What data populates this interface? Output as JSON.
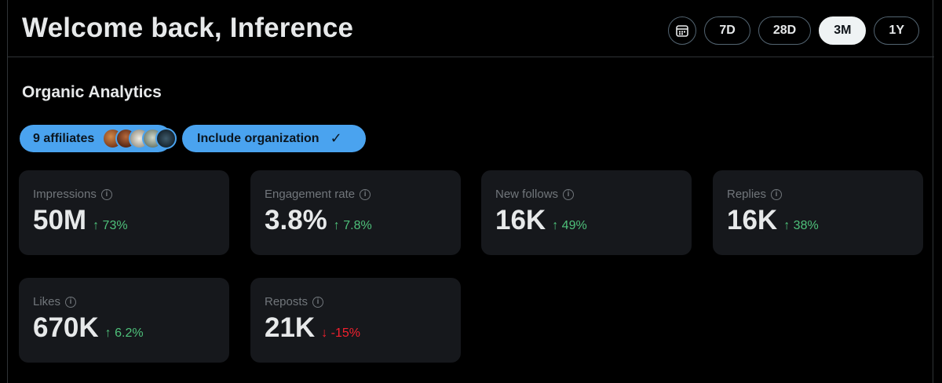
{
  "header": {
    "welcome": "Welcome back, Inference",
    "calendar_icon": "calendar-icon",
    "ranges": [
      {
        "label": "7D",
        "active": false
      },
      {
        "label": "28D",
        "active": false
      },
      {
        "label": "3M",
        "active": true
      },
      {
        "label": "1Y",
        "active": false
      }
    ]
  },
  "section": {
    "title": "Organic Analytics",
    "filters": {
      "affiliates_label": "9 affiliates",
      "organization_label": "Include organization",
      "organization_checked": true
    }
  },
  "metrics": [
    {
      "label": "Impressions",
      "value": "50M",
      "delta": "↑ 73%",
      "direction": "up"
    },
    {
      "label": "Engagement rate",
      "value": "3.8%",
      "delta": "↑ 7.8%",
      "direction": "up"
    },
    {
      "label": "New follows",
      "value": "16K",
      "delta": "↑ 49%",
      "direction": "up"
    },
    {
      "label": "Replies",
      "value": "16K",
      "delta": "↑ 38%",
      "direction": "up"
    },
    {
      "label": "Likes",
      "value": "670K",
      "delta": "↑ 6.2%",
      "direction": "up"
    },
    {
      "label": "Reposts",
      "value": "21K",
      "delta": "↓ -15%",
      "direction": "down"
    }
  ],
  "colors": {
    "background": "#000000",
    "card": "#16181c",
    "accent_pill": "#4aa3ef",
    "positive": "#4ec07a",
    "negative": "#f4212e"
  }
}
